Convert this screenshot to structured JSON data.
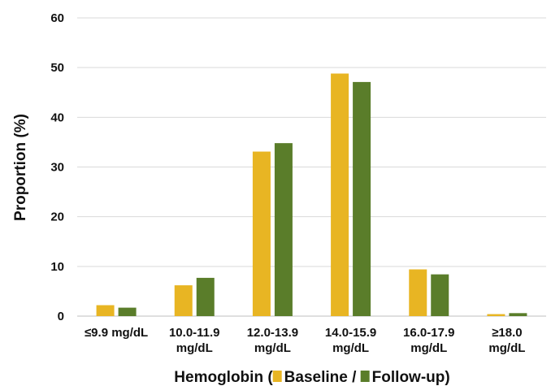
{
  "chart_data": {
    "type": "bar",
    "categories": [
      [
        "≤9.9 mg/dL"
      ],
      [
        "10.0-11.9",
        "mg/dL"
      ],
      [
        "12.0-13.9",
        "mg/dL"
      ],
      [
        "14.0-15.9",
        "mg/dL"
      ],
      [
        "16.0-17.9",
        "mg/dL"
      ],
      [
        "≥18.0",
        "mg/dL"
      ]
    ],
    "series": [
      {
        "name": "Baseline",
        "color": "#E8B523",
        "values": [
          2.2,
          6.2,
          33.1,
          48.8,
          9.4,
          0.4
        ]
      },
      {
        "name": "Follow-up",
        "color": "#5A7D2A",
        "values": [
          1.7,
          7.7,
          34.8,
          47.1,
          8.4,
          0.6
        ]
      }
    ],
    "ylim": [
      0,
      60
    ],
    "yticks": [
      0,
      10,
      20,
      30,
      40,
      50,
      60
    ],
    "ylabel": "Proportion (%)",
    "xlabel": {
      "prefix": "Hemoglobin (",
      "separator": " / ",
      "suffix": ")"
    },
    "grid": true,
    "grid_color": "#d9d9d9",
    "axis_color": "#bfbfbf"
  }
}
